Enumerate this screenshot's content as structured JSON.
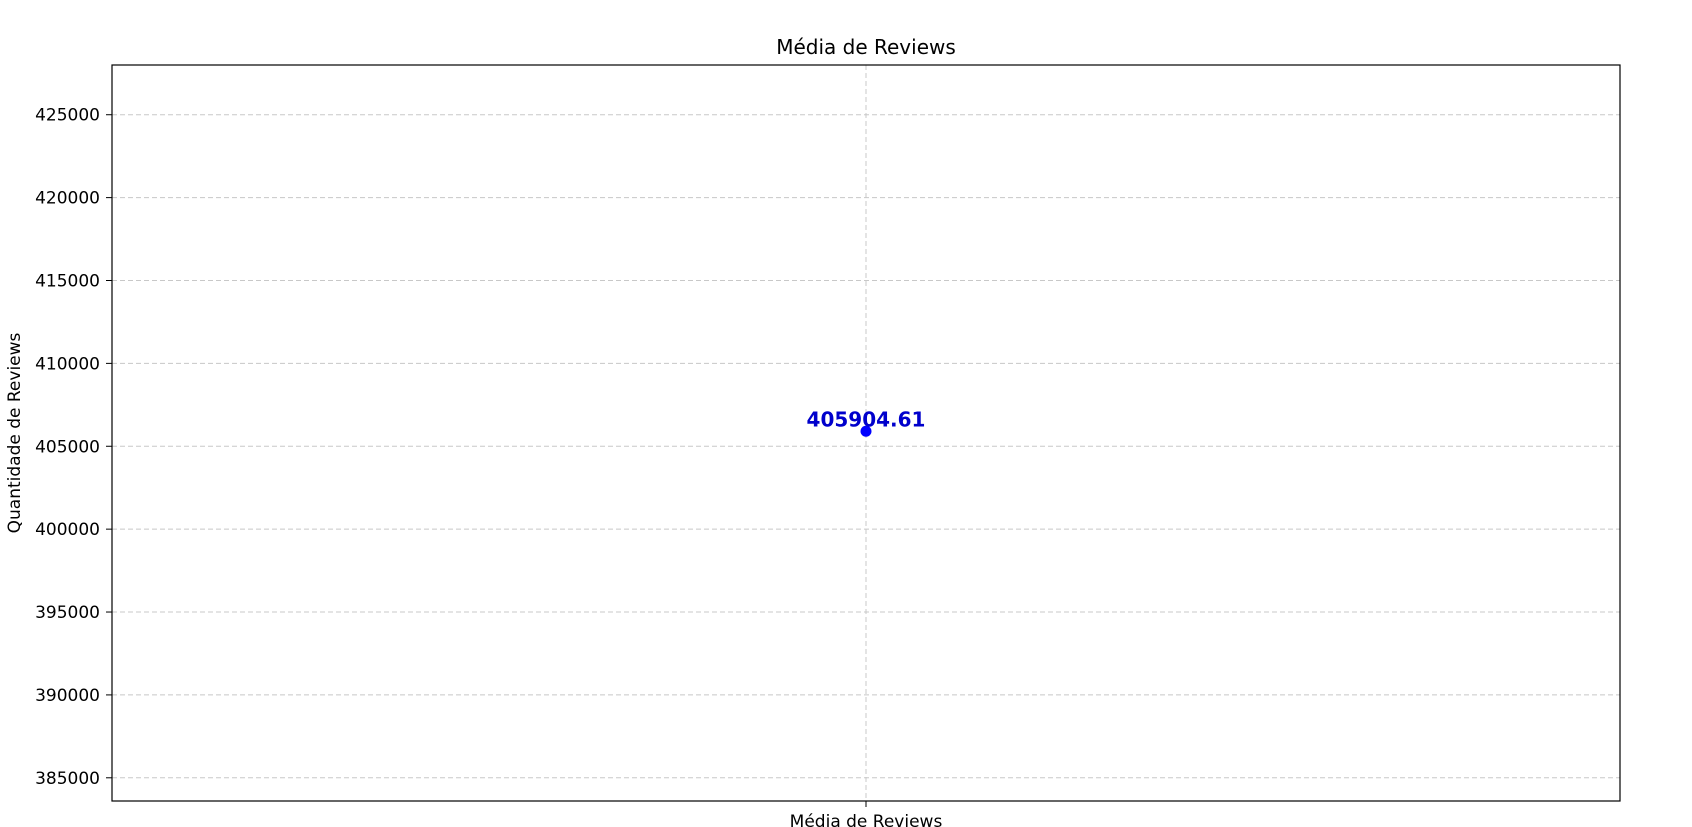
{
  "chart_data": {
    "type": "scatter",
    "title": "Média de Reviews",
    "xlabel": "",
    "ylabel": "Quantidade de Reviews",
    "categories": [
      "Média de Reviews"
    ],
    "values": [
      405904.61
    ],
    "data_labels": [
      "405904.61"
    ],
    "ylim": [
      383600,
      428000
    ],
    "yticks": [
      385000,
      390000,
      395000,
      400000,
      405000,
      410000,
      415000,
      420000,
      425000
    ],
    "ytick_labels": [
      "385000",
      "390000",
      "395000",
      "400000",
      "405000",
      "410000",
      "415000",
      "420000",
      "425000"
    ],
    "grid": true,
    "legend": "none",
    "colors": {
      "point": "#0000ff",
      "data_label": "#0000cc"
    }
  }
}
